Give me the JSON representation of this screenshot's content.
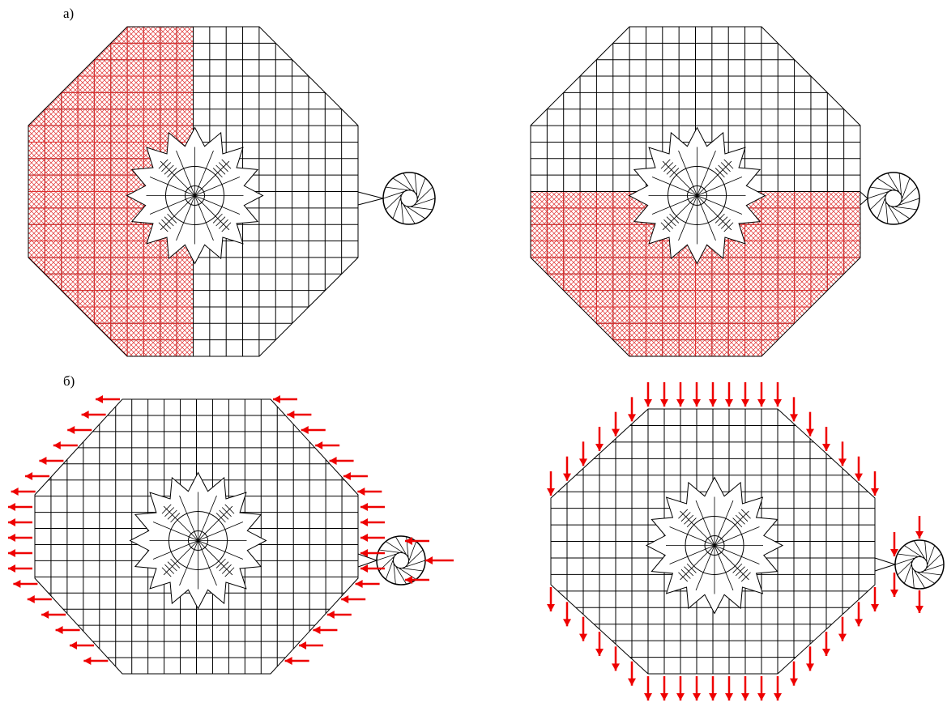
{
  "labels": {
    "a": "а)",
    "b": "б)"
  }
}
